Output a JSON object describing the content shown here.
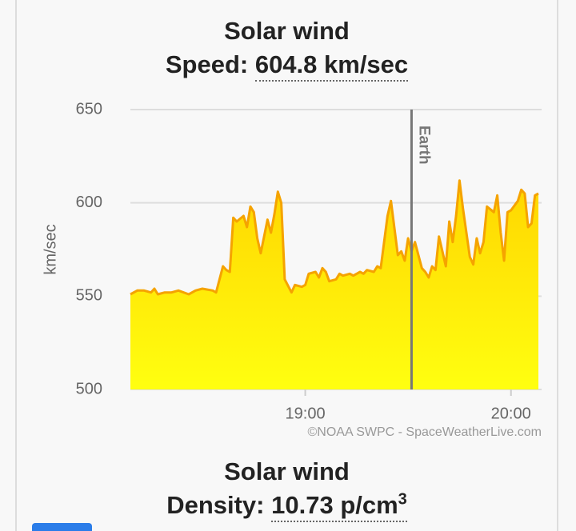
{
  "chart_data": {
    "type": "area",
    "title": "Solar wind",
    "subtitle_label": "Speed:",
    "subtitle_value": "604.8 km/sec",
    "y_label": "km/sec",
    "x": [
      "18:09",
      "18:11",
      "18:13",
      "18:15",
      "18:16",
      "18:17",
      "18:19",
      "18:21",
      "18:23",
      "18:26",
      "18:28",
      "18:30",
      "18:33",
      "18:34",
      "18:36",
      "18:37",
      "18:38",
      "18:39",
      "18:40",
      "18:42",
      "18:43",
      "18:44",
      "18:45",
      "18:46",
      "18:47",
      "18:49",
      "18:50",
      "18:51",
      "18:52",
      "18:53",
      "18:54",
      "18:56",
      "18:57",
      "18:59",
      "19:00",
      "19:01",
      "19:03",
      "19:04",
      "19:05",
      "19:06",
      "19:07",
      "19:09",
      "19:10",
      "19:11",
      "19:13",
      "19:14",
      "19:16",
      "19:17",
      "19:18",
      "19:20",
      "19:21",
      "19:22",
      "19:24",
      "19:25",
      "19:27",
      "19:28",
      "19:29",
      "19:30",
      "19:31",
      "19:32",
      "19:34",
      "19:35",
      "19:36",
      "19:37",
      "19:38",
      "19:39",
      "19:41",
      "19:42",
      "19:43",
      "19:44",
      "19:45",
      "19:46",
      "19:48",
      "19:49",
      "19:50",
      "19:51",
      "19:52",
      "19:53",
      "19:55",
      "19:56",
      "19:57",
      "19:58",
      "19:59",
      "20:00",
      "20:02",
      "20:03",
      "20:04",
      "20:05",
      "20:06",
      "20:07",
      "20:08"
    ],
    "values": [
      551,
      553,
      553,
      552,
      554,
      551,
      552,
      552,
      553,
      551,
      553,
      554,
      553,
      552,
      566,
      564,
      563,
      592,
      590,
      593,
      587,
      598,
      595,
      581,
      573,
      591,
      584,
      594,
      606,
      600,
      559,
      552,
      556,
      555,
      556,
      562,
      563,
      560,
      565,
      563,
      558,
      559,
      562,
      561,
      562,
      561,
      563,
      562,
      564,
      563,
      566,
      565,
      593,
      601,
      572,
      574,
      569,
      581,
      574,
      579,
      565,
      563,
      560,
      566,
      564,
      582,
      566,
      590,
      579,
      593,
      612,
      597,
      571,
      567,
      581,
      573,
      579,
      598,
      595,
      604,
      584,
      569,
      595,
      596,
      601,
      607,
      605,
      587,
      589,
      604,
      605
    ],
    "color": "#f5a300",
    "fill_top": "#ffd500",
    "fill_bottom": "#ffff10",
    "xlim": [
      "18:09",
      "20:08"
    ],
    "xticks": [
      "19:00",
      "20:00"
    ],
    "ylim": [
      500,
      650
    ],
    "yticks": [
      500,
      550,
      600,
      650
    ],
    "grid": true,
    "annotation": {
      "label": "Earth",
      "x": "19:31"
    },
    "credit": "©NOAA SWPC - SpaceWeatherLive.com"
  },
  "density_panel": {
    "title": "Solar wind",
    "label": "Density:",
    "value": "10.73 p/cm",
    "value_superscript": "3"
  }
}
